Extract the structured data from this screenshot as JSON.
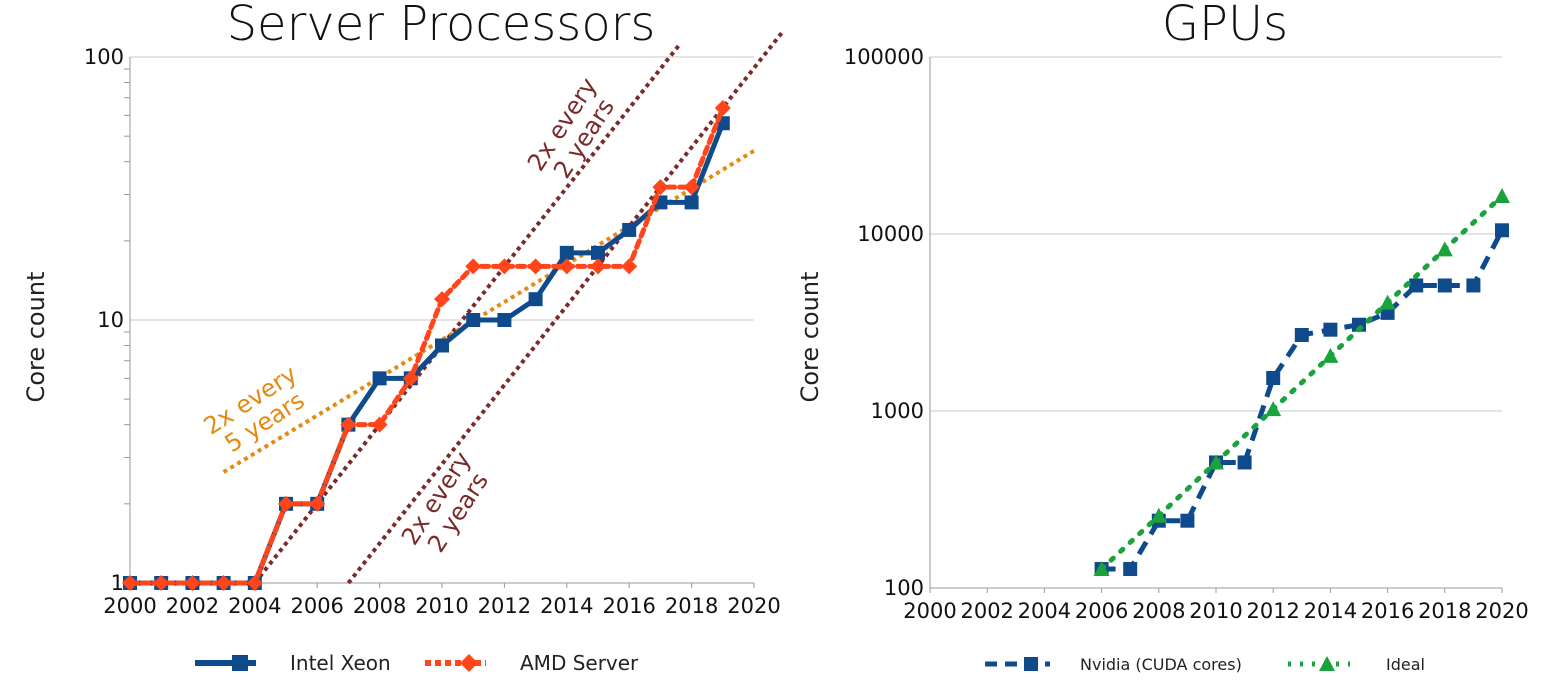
{
  "chart_data": [
    {
      "type": "line",
      "title": "Server Processors",
      "xlabel": "",
      "ylabel": "Core count",
      "y_scale": "log",
      "xlim": [
        2000,
        2020
      ],
      "ylim": [
        1,
        100
      ],
      "x_ticks": [
        "2000",
        "2002",
        "2004",
        "2006",
        "2008",
        "2010",
        "2012",
        "2014",
        "2016",
        "2018",
        "2020"
      ],
      "y_ticks": [
        "1",
        "10",
        "100"
      ],
      "grid": "horizontal",
      "legend": "bottom",
      "series": [
        {
          "name": "Intel Xeon",
          "color": "#0f4b8c",
          "line": "solid",
          "marker": "square",
          "x": [
            2000,
            2001,
            2002,
            2003,
            2004,
            2005,
            2006,
            2007,
            2008,
            2009,
            2010,
            2011,
            2012,
            2013,
            2014,
            2015,
            2016,
            2017,
            2018,
            2019
          ],
          "y": [
            1,
            1,
            1,
            1,
            1,
            2,
            2,
            4,
            6,
            6,
            8,
            10,
            10,
            12,
            18,
            18,
            22,
            28,
            28,
            56
          ]
        },
        {
          "name": "AMD Server",
          "color": "#ff4519",
          "line": "dotted",
          "marker": "diamond",
          "x": [
            2000,
            2001,
            2002,
            2003,
            2004,
            2005,
            2006,
            2007,
            2008,
            2009,
            2010,
            2011,
            2012,
            2013,
            2014,
            2015,
            2016,
            2017,
            2018,
            2019
          ],
          "y": [
            1,
            1,
            1,
            1,
            1,
            2,
            2,
            4,
            4,
            6,
            12,
            16,
            16,
            16,
            16,
            16,
            16,
            32,
            32,
            64
          ]
        }
      ],
      "trend_lines": [
        {
          "color": "#7b2a2a",
          "x": [
            2004,
            2017.6
          ],
          "y": [
            1,
            111
          ]
        },
        {
          "color": "#7b2a2a",
          "x": [
            2007,
            2020.9
          ],
          "y": [
            1,
            124
          ]
        },
        {
          "color": "#e58a12",
          "x": [
            2003,
            2020
          ],
          "y": [
            2.64,
            44
          ]
        }
      ],
      "annotations": [
        {
          "text": "2x every",
          "text2": "2 years",
          "color": "#7b2a2a"
        },
        {
          "text": "2x every",
          "text2": "5 years",
          "color": "#e58a12"
        },
        {
          "text": "2x every",
          "text2": "2 years",
          "color": "#7b2a2a"
        }
      ]
    },
    {
      "type": "line",
      "title": "GPUs",
      "xlabel": "",
      "ylabel": "Core count",
      "y_scale": "log",
      "xlim": [
        2000,
        2020
      ],
      "ylim": [
        100,
        100000
      ],
      "x_ticks": [
        "2000",
        "2002",
        "2004",
        "2006",
        "2008",
        "2010",
        "2012",
        "2014",
        "2016",
        "2018",
        "2020"
      ],
      "y_ticks": [
        "100",
        "1000",
        "10000",
        "100000"
      ],
      "grid": "horizontal",
      "legend": "bottom",
      "series": [
        {
          "name": "Nvidia (CUDA cores)",
          "color": "#0f4b8c",
          "line": "dashed",
          "marker": "square",
          "x": [
            2006,
            2007,
            2008,
            2009,
            2010,
            2011,
            2012,
            2013,
            2014,
            2015,
            2016,
            2017,
            2018,
            2019,
            2020
          ],
          "y": [
            128,
            128,
            240,
            240,
            512,
            512,
            1536,
            2688,
            2880,
            3072,
            3584,
            5120,
            5120,
            5120,
            10496
          ]
        },
        {
          "name": "Ideal",
          "color": "#1aa33c",
          "line": "dotted",
          "marker": "triangle",
          "x": [
            2006,
            2008,
            2010,
            2012,
            2014,
            2016,
            2018,
            2020
          ],
          "y": [
            128,
            256,
            512,
            1024,
            2048,
            4096,
            8192,
            16384
          ]
        }
      ]
    }
  ]
}
